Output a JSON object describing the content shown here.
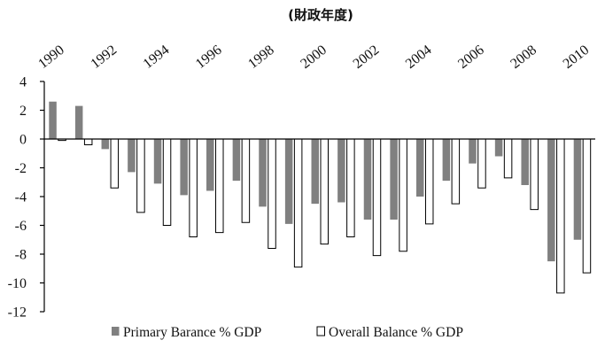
{
  "chart_data": {
    "type": "bar",
    "title": "(財政年度)",
    "xlabel": "",
    "ylabel": "",
    "ylim": [
      -12,
      4
    ],
    "yticks": [
      4,
      2,
      0,
      -2,
      -4,
      -6,
      -8,
      -10,
      -12
    ],
    "categories": [
      "1990",
      "1991",
      "1992",
      "1993",
      "1994",
      "1995",
      "1996",
      "1997",
      "1998",
      "1999",
      "2000",
      "2001",
      "2002",
      "2003",
      "2004",
      "2005",
      "2006",
      "2007",
      "2008",
      "2009",
      "2010"
    ],
    "x_tick_labels": [
      "1990",
      "1992",
      "1994",
      "1996",
      "1998",
      "2000",
      "2002",
      "2004",
      "2006",
      "2008",
      "2010"
    ],
    "x_axis_position": "top",
    "legend_position": "bottom",
    "grid": false,
    "series": [
      {
        "name": "Primary Barance % GDP",
        "color": "#808080",
        "values": [
          2.6,
          2.3,
          -0.7,
          -2.3,
          -3.1,
          -3.9,
          -3.6,
          -2.9,
          -4.7,
          -5.9,
          -4.5,
          -4.4,
          -5.6,
          -5.6,
          -4.0,
          -2.9,
          -1.7,
          -1.2,
          -3.2,
          -8.5,
          -7.0
        ]
      },
      {
        "name": "Overall Balance % GDP",
        "color": "#ffffff",
        "values": [
          -0.1,
          -0.4,
          -3.4,
          -5.1,
          -6.0,
          -6.8,
          -6.5,
          -5.8,
          -7.6,
          -8.9,
          -7.3,
          -6.8,
          -8.1,
          -7.8,
          -5.9,
          -4.5,
          -3.4,
          -2.7,
          -4.9,
          -10.7,
          -9.3
        ]
      }
    ]
  }
}
